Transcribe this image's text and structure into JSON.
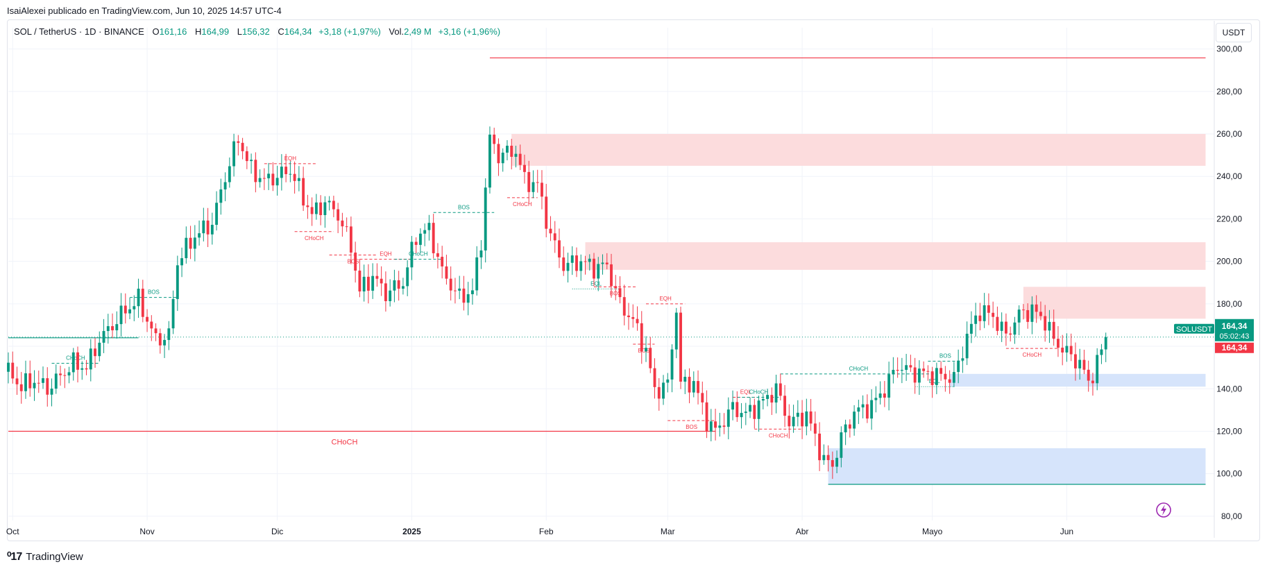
{
  "header": {
    "published_line": "IsaiAlexei publicado en TradingView.com, Jun 10, 2025 14:57 UTC-4"
  },
  "legend": {
    "symbol": "SOL / TetherUS · 1D · BINANCE",
    "open_label": "O",
    "open": "161,16",
    "high_label": "H",
    "high": "164,99",
    "low_label": "L",
    "low": "156,32",
    "close_label": "C",
    "close": "164,34",
    "change": "+3,18 (+1,97%)",
    "vol_label": "Vol.",
    "vol": "2,49 M",
    "vol_change": "+3,16 (+1,96%)"
  },
  "price_scale": {
    "unit": "USDT",
    "last_symbol": "SOLUSDT",
    "last_price": "164,34",
    "countdown": "05:02:43",
    "last_price_red": "164,34"
  },
  "footer": {
    "brand": "TradingView",
    "logo_icon": "tradingview-logo-icon"
  },
  "colors": {
    "up": "#089981",
    "down": "#f23645",
    "supply": "#fcdcdd",
    "demand": "#d6e4fb",
    "grid": "#f0f3fa"
  },
  "chart_data": {
    "type": "candlestick",
    "ylim": [
      78,
      310
    ],
    "yticks": [
      80,
      100,
      120,
      140,
      160,
      180,
      200,
      220,
      240,
      260,
      280,
      300
    ],
    "ytick_labels": [
      "80,00",
      "100,00",
      "120,00",
      "140,00",
      "160,00",
      "180,00",
      "200,00",
      "220,00",
      "240,00",
      "260,00",
      "280,00",
      "300,00"
    ],
    "x_range": [
      "2024-09-30",
      "2025-07-05"
    ],
    "xticks": [
      {
        "date": "2024-10-01",
        "label": "Oct"
      },
      {
        "date": "2024-11-01",
        "label": "Nov"
      },
      {
        "date": "2024-12-01",
        "label": "Dic"
      },
      {
        "date": "2025-01-01",
        "label": "2025"
      },
      {
        "date": "2025-02-01",
        "label": "Feb"
      },
      {
        "date": "2025-03-01",
        "label": "Mar"
      },
      {
        "date": "2025-04-01",
        "label": "Abr"
      },
      {
        "date": "2025-05-01",
        "label": "Mayo"
      },
      {
        "date": "2025-06-01",
        "label": "Jun"
      }
    ],
    "anchors": [
      [
        "2024-09-30",
        148
      ],
      [
        "2024-10-03",
        141
      ],
      [
        "2024-10-06",
        144
      ],
      [
        "2024-10-09",
        140
      ],
      [
        "2024-10-12",
        146
      ],
      [
        "2024-10-15",
        152
      ],
      [
        "2024-10-18",
        150
      ],
      [
        "2024-10-21",
        163
      ],
      [
        "2024-10-24",
        170
      ],
      [
        "2024-10-27",
        177
      ],
      [
        "2024-10-30",
        182
      ],
      [
        "2024-11-03",
        163
      ],
      [
        "2024-11-06",
        165
      ],
      [
        "2024-11-08",
        200
      ],
      [
        "2024-11-12",
        212
      ],
      [
        "2024-11-16",
        218
      ],
      [
        "2024-11-19",
        240
      ],
      [
        "2024-11-22",
        258
      ],
      [
        "2024-11-25",
        243
      ],
      [
        "2024-11-28",
        238
      ],
      [
        "2024-12-01",
        240
      ],
      [
        "2024-12-04",
        243
      ],
      [
        "2024-12-07",
        230
      ],
      [
        "2024-12-09",
        222
      ],
      [
        "2024-12-12",
        228
      ],
      [
        "2024-12-15",
        222
      ],
      [
        "2024-12-18",
        207
      ],
      [
        "2024-12-20",
        186
      ],
      [
        "2024-12-23",
        193
      ],
      [
        "2024-12-26",
        185
      ],
      [
        "2024-12-30",
        190
      ],
      [
        "2025-01-02",
        212
      ],
      [
        "2025-01-05",
        215
      ],
      [
        "2025-01-08",
        195
      ],
      [
        "2025-01-12",
        183
      ],
      [
        "2025-01-15",
        186
      ],
      [
        "2025-01-17",
        210
      ],
      [
        "2025-01-19",
        258
      ],
      [
        "2025-01-21",
        250
      ],
      [
        "2025-01-25",
        252
      ],
      [
        "2025-01-27",
        238
      ],
      [
        "2025-01-30",
        236
      ],
      [
        "2025-02-02",
        212
      ],
      [
        "2025-02-05",
        198
      ],
      [
        "2025-02-09",
        200
      ],
      [
        "2025-02-12",
        197
      ],
      [
        "2025-02-15",
        198
      ],
      [
        "2025-02-18",
        180
      ],
      [
        "2025-02-21",
        172
      ],
      [
        "2025-02-24",
        158
      ],
      [
        "2025-02-26",
        139
      ],
      [
        "2025-03-01",
        142
      ],
      [
        "2025-03-03",
        178
      ],
      [
        "2025-03-04",
        142
      ],
      [
        "2025-03-07",
        143
      ],
      [
        "2025-03-10",
        125
      ],
      [
        "2025-03-12",
        120
      ],
      [
        "2025-03-16",
        131
      ],
      [
        "2025-03-19",
        128
      ],
      [
        "2025-03-23",
        134
      ],
      [
        "2025-03-26",
        140
      ],
      [
        "2025-03-29",
        124
      ],
      [
        "2025-04-02",
        128
      ],
      [
        "2025-04-06",
        106
      ],
      [
        "2025-04-08",
        104
      ],
      [
        "2025-04-10",
        117
      ],
      [
        "2025-04-13",
        129
      ],
      [
        "2025-04-17",
        132
      ],
      [
        "2025-04-20",
        140
      ],
      [
        "2025-04-23",
        151
      ],
      [
        "2025-04-26",
        148
      ],
      [
        "2025-04-30",
        147
      ],
      [
        "2025-05-03",
        146
      ],
      [
        "2025-05-06",
        145
      ],
      [
        "2025-05-09",
        165
      ],
      [
        "2025-05-12",
        177
      ],
      [
        "2025-05-15",
        174
      ],
      [
        "2025-05-18",
        165
      ],
      [
        "2025-05-21",
        175
      ],
      [
        "2025-05-24",
        177
      ],
      [
        "2025-05-27",
        172
      ],
      [
        "2025-05-29",
        163
      ],
      [
        "2025-06-01",
        157
      ],
      [
        "2025-06-04",
        152
      ],
      [
        "2025-06-06",
        143
      ],
      [
        "2025-06-08",
        152
      ],
      [
        "2025-06-10",
        164.34
      ]
    ],
    "zones": [
      {
        "kind": "supply",
        "x0": "2025-01-24",
        "x1": "2025-07-03",
        "y0": 245,
        "y1": 260
      },
      {
        "kind": "supply",
        "x0": "2025-02-10",
        "x1": "2025-07-03",
        "y0": 196,
        "y1": 209
      },
      {
        "kind": "supply",
        "x0": "2025-05-22",
        "x1": "2025-07-03",
        "y0": 173,
        "y1": 188
      },
      {
        "kind": "demand",
        "x0": "2025-05-05",
        "x1": "2025-07-03",
        "y0": 141,
        "y1": 147
      },
      {
        "kind": "demand",
        "x0": "2025-04-07",
        "x1": "2025-07-03",
        "y0": 95,
        "y1": 112
      }
    ],
    "levels": [
      {
        "color": "#f23645",
        "x0": "2025-01-19",
        "x1": "2025-07-03",
        "y": 295.8
      },
      {
        "color": "#f23645",
        "x0": "2024-09-30",
        "x1": "2025-03-12",
        "y": 120
      },
      {
        "color": "#089981",
        "x0": "2025-04-07",
        "x1": "2025-07-03",
        "y": 95
      },
      {
        "color": "#089981",
        "x0": "2024-09-30",
        "x1": "2024-10-30",
        "y": 164
      }
    ],
    "structure": [
      {
        "label": "CHoCH",
        "color": "#089981",
        "x0": "2024-10-10",
        "x1": "2024-10-21",
        "y": 152,
        "dash": true
      },
      {
        "label": "BOS",
        "color": "#089981",
        "x0": "2024-10-28",
        "x1": "2024-11-08",
        "y": 183,
        "dash": true
      },
      {
        "label": "EQH",
        "color": "#f23645",
        "x0": "2024-11-28",
        "x1": "2024-12-10",
        "y": 246,
        "dash": true
      },
      {
        "label": "CHoCH",
        "color": "#f23645",
        "x0": "2024-12-05",
        "x1": "2024-12-14",
        "y": 214,
        "dash": true
      },
      {
        "label": "BOS",
        "color": "#f23645",
        "x0": "2024-12-13",
        "x1": "2024-12-24",
        "y": 203,
        "dash": true
      },
      {
        "label": "EQH",
        "color": "#f23645",
        "x0": "2024-12-20",
        "x1": "2025-01-01",
        "y": 201,
        "dash": true
      },
      {
        "label": "CHoCH",
        "color": "#089981",
        "x0": "2024-12-28",
        "x1": "2025-01-08",
        "y": 201,
        "dash": true
      },
      {
        "label": "BOS",
        "color": "#089981",
        "x0": "2025-01-06",
        "x1": "2025-01-20",
        "y": 223,
        "dash": true
      },
      {
        "label": "CHoCH",
        "color": "#f23645",
        "x0": "2025-01-23",
        "x1": "2025-01-30",
        "y": 230,
        "dash": true
      },
      {
        "label": "EQL",
        "color": "#089981",
        "x0": "2025-02-07",
        "x1": "2025-02-18",
        "y": 187,
        "dash": false
      },
      {
        "label": "BOS",
        "color": "#f23645",
        "x0": "2025-02-12",
        "x1": "2025-02-22",
        "y": 188,
        "dash": true
      },
      {
        "label": "EQH",
        "color": "#f23645",
        "x0": "2025-02-24",
        "x1": "2025-03-05",
        "y": 180,
        "dash": true
      },
      {
        "label": "BOS",
        "color": "#f23645",
        "x0": "2025-02-21",
        "x1": "2025-02-26",
        "y": 161,
        "dash": true
      },
      {
        "label": "BOS",
        "color": "#f23645",
        "x0": "2025-03-01",
        "x1": "2025-03-12",
        "y": 125,
        "dash": true
      },
      {
        "label": "EQL",
        "color": "#f23645",
        "x0": "2025-03-16",
        "x1": "2025-03-22",
        "y": 136,
        "dash": true
      },
      {
        "label": "CHoCH",
        "color": "#089981",
        "x0": "2025-03-17",
        "x1": "2025-03-27",
        "y": 136,
        "dash": true
      },
      {
        "label": "CHoCH",
        "color": "#089981",
        "x0": "2025-03-27",
        "x1": "2025-05-02",
        "y": 147,
        "dash": true
      },
      {
        "label": "CHoCH",
        "color": "#f23645",
        "x0": "2025-03-21",
        "x1": "2025-04-01",
        "y": 121,
        "dash": true
      },
      {
        "label": "BOS",
        "color": "#089981",
        "x0": "2025-04-30",
        "x1": "2025-05-08",
        "y": 153,
        "dash": true
      },
      {
        "label": "EQL",
        "color": "#089981",
        "x0": "2025-04-27",
        "x1": "2025-05-06",
        "y": 141,
        "dash": false
      },
      {
        "label": "CHoCH",
        "color": "#f23645",
        "x0": "2025-05-18",
        "x1": "2025-05-30",
        "y": 159,
        "dash": true
      },
      {
        "label": "CHoCH",
        "color": "#f23645",
        "x0": "2024-12-01",
        "x1": "2025-01-01",
        "y": 120,
        "dash": false,
        "big": true
      }
    ],
    "last_price_line": 164.34
  }
}
